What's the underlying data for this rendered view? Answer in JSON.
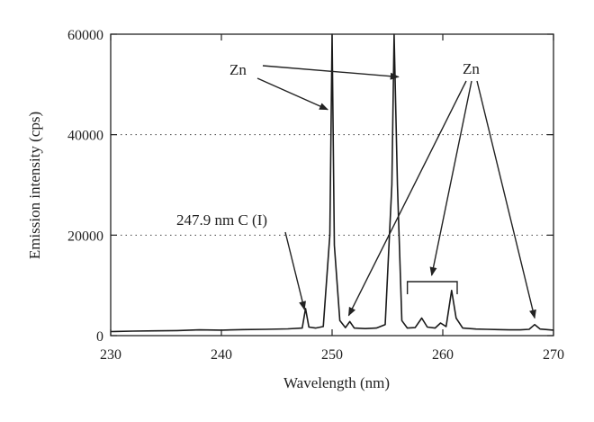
{
  "chart_data": {
    "type": "line",
    "title": "",
    "xlabel": "Wavelength (nm)",
    "ylabel": "Emission intensity (cps)",
    "xlim": [
      230,
      270
    ],
    "ylim": [
      0,
      60000
    ],
    "x_ticks": [
      230,
      240,
      250,
      260,
      270
    ],
    "y_ticks": [
      0,
      20000,
      40000,
      60000
    ],
    "x_tick_labels": [
      "230",
      "240",
      "250",
      "260",
      "270"
    ],
    "y_tick_labels": [
      "0",
      "20000",
      "40000",
      "60000"
    ],
    "grid": "dotted horizontal lines at 20000 and 40000",
    "legend": "none",
    "line_color": "#1a1a1a",
    "series": [
      {
        "values": [
          [
            230,
            800
          ],
          [
            232,
            900
          ],
          [
            234,
            950
          ],
          [
            236,
            1000
          ],
          [
            238,
            1150
          ],
          [
            240,
            1100
          ],
          [
            242,
            1200
          ],
          [
            244,
            1250
          ],
          [
            246,
            1350
          ],
          [
            247.3,
            1500
          ],
          [
            247.6,
            5400
          ],
          [
            247.9,
            1700
          ],
          [
            248.5,
            1500
          ],
          [
            249.2,
            1800
          ],
          [
            249.8,
            20000
          ],
          [
            250.0,
            64000
          ],
          [
            250.2,
            18000
          ],
          [
            250.7,
            3000
          ],
          [
            251.2,
            1600
          ],
          [
            251.6,
            2800
          ],
          [
            252.0,
            1500
          ],
          [
            253,
            1400
          ],
          [
            254,
            1500
          ],
          [
            254.8,
            2200
          ],
          [
            255.4,
            30000
          ],
          [
            255.6,
            64000
          ],
          [
            255.9,
            30000
          ],
          [
            256.3,
            3000
          ],
          [
            256.8,
            1500
          ],
          [
            257.5,
            1600
          ],
          [
            258.1,
            3500
          ],
          [
            258.6,
            1700
          ],
          [
            259.3,
            1500
          ],
          [
            259.8,
            2500
          ],
          [
            260.3,
            1800
          ],
          [
            260.8,
            9000
          ],
          [
            261.2,
            3500
          ],
          [
            261.8,
            1500
          ],
          [
            263,
            1300
          ],
          [
            264,
            1250
          ],
          [
            265,
            1200
          ],
          [
            266,
            1150
          ],
          [
            267,
            1150
          ],
          [
            267.8,
            1250
          ],
          [
            268.3,
            2200
          ],
          [
            268.8,
            1300
          ],
          [
            270,
            1100
          ]
        ]
      }
    ],
    "annotations": [
      {
        "text": "247.9 nm C (I)",
        "target": [
          247.5,
          5200
        ]
      },
      {
        "text": "Zn",
        "targets": [
          [
            249.6,
            45000
          ],
          [
            256.0,
            51500
          ]
        ]
      },
      {
        "text": "Zn",
        "targets": [
          [
            251.5,
            4000
          ],
          [
            259.0,
            12000
          ],
          [
            268.3,
            3500
          ]
        ],
        "bracket_x": [
          256.8,
          261.3
        ]
      }
    ]
  }
}
